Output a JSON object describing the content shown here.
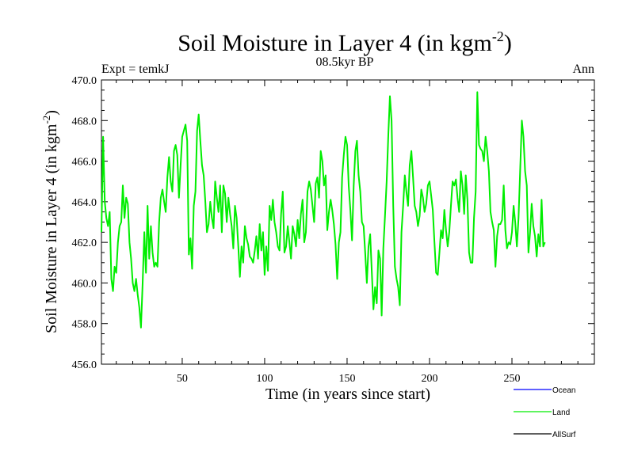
{
  "colors": {
    "land": "#00ee00",
    "ocean": "#0000ff",
    "allsurf": "#000000",
    "axis": "#000000"
  },
  "header": {
    "title_main": "Soil Moisture in Layer 4 (in kgm",
    "title_sup": "-2",
    "title_close": ")",
    "left_label": "Expt = temkJ",
    "center_label": "08.5kyr BP",
    "right_label": "Ann"
  },
  "chart_data": {
    "type": "line",
    "title": "Soil Moisture in Layer 4 (in kgm-2)",
    "xlabel": "Time (in years since start)",
    "ylabel_main": "Soil Moisture in Layer 4 (in kgm",
    "ylabel_sup": "-2",
    "ylabel_close": ")",
    "xlim": [
      1,
      300
    ],
    "ylim": [
      456,
      470
    ],
    "xticks": [
      50,
      100,
      150,
      200,
      250
    ],
    "xtick_labels": [
      "50",
      "100",
      "150",
      "200",
      "250"
    ],
    "yticks": [
      456,
      458,
      460,
      462,
      464,
      466,
      468,
      470
    ],
    "ytick_labels": [
      "456.0",
      "458.0",
      "460.0",
      "462.0",
      "464.0",
      "466.0",
      "468.0",
      "470.0"
    ],
    "legend": [
      {
        "name": "Ocean",
        "color": "#0000ff"
      },
      {
        "name": "Land",
        "color": "#00ee00"
      },
      {
        "name": "AllSurf",
        "color": "#000000"
      }
    ],
    "series": [
      {
        "name": "Land",
        "x_start": 1,
        "values": [
          462.5,
          467.2,
          464.0,
          463.2,
          462.8,
          463.5,
          460.2,
          459.6,
          460.8,
          460.5,
          462.0,
          462.8,
          463.0,
          464.8,
          463.2,
          464.2,
          463.9,
          462.0,
          461.2,
          460.0,
          459.6,
          460.2,
          459.4,
          458.8,
          457.8,
          460.0,
          462.5,
          460.5,
          463.8,
          461.2,
          462.8,
          461.5,
          460.8,
          461.0,
          460.8,
          463.0,
          464.2,
          464.6,
          464.0,
          463.5,
          465.2,
          466.2,
          465.0,
          464.5,
          466.5,
          466.8,
          466.3,
          464.2,
          465.8,
          467.2,
          467.5,
          467.8,
          467.0,
          461.4,
          462.2,
          460.7,
          463.8,
          464.5,
          467.5,
          468.3,
          467.0,
          465.8,
          465.3,
          464.0,
          462.5,
          462.9,
          464.0,
          463.2,
          462.7,
          465.0,
          464.2,
          463.5,
          464.8,
          462.5,
          464.8,
          464.4,
          463.0,
          464.2,
          463.4,
          462.8,
          461.7,
          463.8,
          463.2,
          461.8,
          460.3,
          461.8,
          461.0,
          462.8,
          462.2,
          461.9,
          461.3,
          461.2,
          461.0,
          461.6,
          462.3,
          461.2,
          462.9,
          461.6,
          462.5,
          460.4,
          461.8,
          460.6,
          463.8,
          463.1,
          464.1,
          463.0,
          462.5,
          461.8,
          461.6,
          463.4,
          464.5,
          461.5,
          461.8,
          462.8,
          462.0,
          461.2,
          462.8,
          462.4,
          461.8,
          463.1,
          462.2,
          463.4,
          464.1,
          462.0,
          462.5,
          464.5,
          465.0,
          464.6,
          463.8,
          463.0,
          464.9,
          465.2,
          464.2,
          466.5,
          466.0,
          464.8,
          465.3,
          462.6,
          463.5,
          464.1,
          463.6,
          462.9,
          461.9,
          460.2,
          462.0,
          462.5,
          465.2,
          466.3,
          467.2,
          466.8,
          464.8,
          463.6,
          462.1,
          464.8,
          466.5,
          467.0,
          465.3,
          464.5,
          463.0,
          462.8,
          461.5,
          460.0,
          461.8,
          462.4,
          460.5,
          458.7,
          459.8,
          459.0,
          461.6,
          461.2,
          458.4,
          461.7,
          463.3,
          465.0,
          467.3,
          469.2,
          468.0,
          463.8,
          460.8,
          460.2,
          459.8,
          458.9,
          462.5,
          463.8,
          465.3,
          464.5,
          463.8,
          465.8,
          466.5,
          465.2,
          463.8,
          463.5,
          462.8,
          463.3,
          464.6,
          464.2,
          463.5,
          463.9,
          464.8,
          465.0,
          464.3,
          463.6,
          462.0,
          460.5,
          460.4,
          461.5,
          462.6,
          462.2,
          463.6,
          462.6,
          461.8,
          462.5,
          463.8,
          465.0,
          464.8,
          465.1,
          464.2,
          463.5,
          465.5,
          464.8,
          463.4,
          465.3,
          464.1,
          461.5,
          461.0,
          461.0,
          463.2,
          464.5,
          469.4,
          466.8,
          466.6,
          466.5,
          466.0,
          467.2,
          466.5,
          465.5,
          463.5,
          463.0,
          462.6,
          460.8,
          462.3,
          462.9,
          462.9,
          463.1,
          464.8,
          462.6,
          461.7,
          462.0,
          461.9,
          462.5,
          463.8,
          463.0,
          461.8,
          463.2,
          465.6,
          468.0,
          467.2,
          465.5,
          464.8,
          461.5,
          462.5,
          463.9,
          462.8,
          462.3,
          461.3,
          462.4,
          461.8,
          464.1,
          461.8,
          462.0
        ]
      },
      {
        "name": "Ocean",
        "values": []
      },
      {
        "name": "AllSurf",
        "values": []
      }
    ]
  }
}
